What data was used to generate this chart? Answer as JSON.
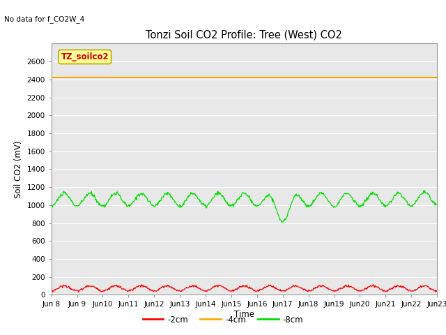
{
  "title": "Tonzi Soil CO2 Profile: Tree (West) CO2",
  "no_data_text": "No data for f_CO2W_4",
  "ylabel": "Soil CO2 (mV)",
  "xlabel": "Time",
  "ylim": [
    0,
    2800
  ],
  "yticks": [
    0,
    200,
    400,
    600,
    800,
    1000,
    1200,
    1400,
    1600,
    1800,
    2000,
    2200,
    2400,
    2600
  ],
  "num_days": 15,
  "xtick_labels": [
    "Jun 8",
    "Jun 9",
    "Jun 10",
    "Jun 11",
    "Jun 12",
    "Jun 13",
    "Jun 14",
    "Jun 15",
    "Jun 16",
    "Jun 17",
    "Jun 18",
    "Jun 19",
    "Jun 20",
    "Jun 21",
    "Jun 22",
    "Jun 23"
  ],
  "color_2cm": "#ff0000",
  "color_4cm": "#ffaa00",
  "color_8cm": "#00dd00",
  "legend_label_2cm": "-2cm",
  "legend_label_4cm": "-4cm",
  "legend_label_8cm": "-8cm",
  "tag_label": "TZ_soilco2",
  "tag_bg_color": "#ffff99",
  "tag_border_color": "#bbaa00",
  "background_color": "#e8e8e8",
  "grid_color": "#ffffff",
  "flat_line_4cm": 2420,
  "mean_8cm": 1060,
  "amplitude_8cm": 70,
  "mean_2cm": 72,
  "amplitude_2cm": 28,
  "title_fontsize": 10.5,
  "axis_fontsize": 8.5,
  "tick_fontsize": 7.5,
  "legend_fontsize": 8.5
}
